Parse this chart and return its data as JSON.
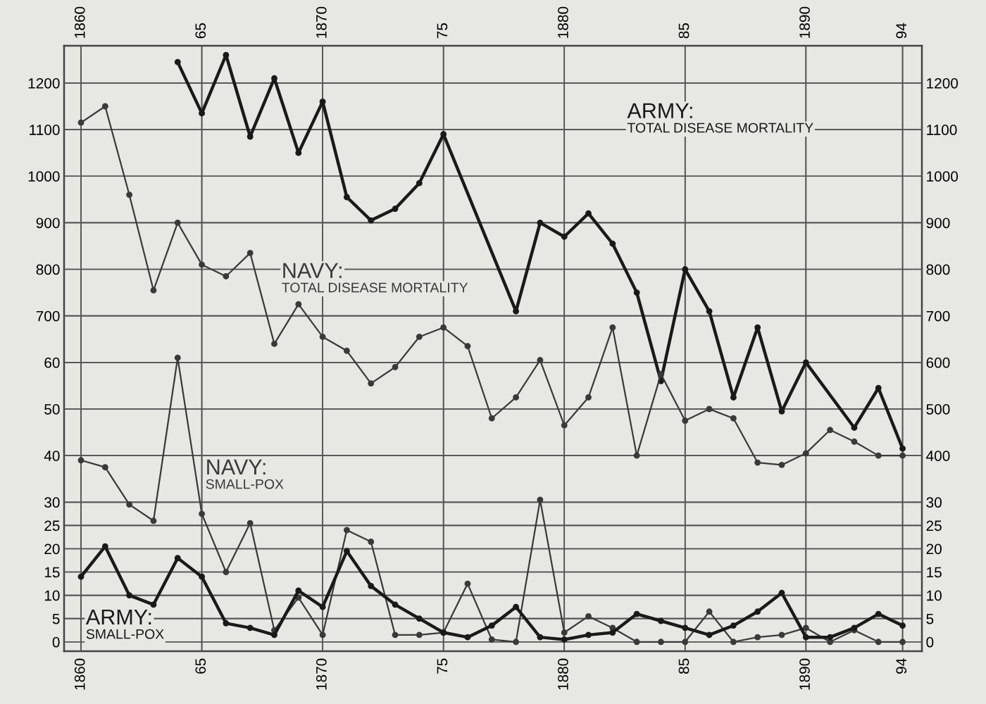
{
  "chart_data": [
    {
      "type": "line",
      "xlim": [
        1859.3,
        1894.8
      ],
      "x2lim": [
        1859.3,
        1894.8
      ],
      "x2ticks": [
        1860,
        {
          "value": 1865,
          "label": "65"
        },
        1870,
        {
          "value": 1875,
          "label": "75"
        },
        1880,
        {
          "value": 1885,
          "label": "85"
        },
        1890,
        {
          "value": 1894,
          "label": "94"
        }
      ],
      "ylim": [
        -20,
        1280
      ],
      "yticks": [
        700,
        800,
        900,
        1000,
        1100,
        1200
      ],
      "y2lim": [
        -20,
        1280
      ],
      "y2ticks": [
        400,
        500,
        600,
        700,
        800,
        900,
        1000,
        1100,
        1200
      ],
      "grid": true,
      "marker": "circle",
      "line_style": "solid",
      "series": [
        {
          "name": "ARMY:\nTOTAL DISEASE MORTALITY",
          "color": "#1a1a1a",
          "axis": "y",
          "x": [
            1864,
            1865,
            1866,
            1867,
            1868,
            1869,
            1870,
            1871,
            1872,
            1873,
            1874,
            1875,
            1878,
            1879,
            1880,
            1881,
            1882,
            1883,
            1884,
            1885,
            1886,
            1887,
            1888,
            1889,
            1890,
            1892,
            1893,
            1894
          ],
          "values": [
            1245,
            1135,
            1260,
            1085,
            1210,
            1050,
            1160,
            955,
            905,
            930,
            985,
            1090,
            710,
            900,
            870,
            920,
            855,
            750,
            560,
            800,
            710,
            525,
            675,
            495,
            600,
            460,
            545,
            415
          ]
        },
        {
          "name": "NAVY:\nTOTAL DISEASE MORTALITY",
          "color": "#3a3a3a",
          "axis": "y",
          "x": [
            1860,
            1861,
            1862,
            1863,
            1864,
            1865,
            1866,
            1867,
            1868,
            1869,
            1870,
            1871,
            1872,
            1873,
            1874,
            1875,
            1876,
            1877,
            1878,
            1879,
            1880,
            1881,
            1882,
            1883,
            1884,
            1885,
            1886,
            1887,
            1888,
            1889,
            1890,
            1891,
            1892,
            1893,
            1894
          ],
          "values": [
            1115,
            1150,
            960,
            755,
            900,
            810,
            785,
            835,
            640,
            725,
            655,
            625,
            555,
            590,
            655,
            675,
            635,
            480,
            525,
            605,
            465,
            525,
            675,
            400,
            575,
            475,
            500,
            480,
            385,
            380,
            405,
            455,
            430,
            400,
            400
          ]
        }
      ]
    },
    {
      "type": "line",
      "xlim": [
        1859.3,
        1894.8
      ],
      "xticks": [
        1860,
        {
          "value": 1865,
          "label": "65"
        },
        1870,
        {
          "value": 1875,
          "label": "75"
        },
        1880,
        {
          "value": 1885,
          "label": "85"
        },
        1890,
        {
          "value": 1894,
          "label": "94"
        }
      ],
      "ylim": [
        -2,
        128
      ],
      "yticks": [
        0,
        5,
        10,
        15,
        20,
        25,
        30,
        40,
        50,
        60
      ],
      "y2lim": [
        -2,
        128
      ],
      "y2ticks": [
        0,
        5,
        10,
        15,
        20,
        25,
        30
      ],
      "grid": true,
      "marker": "circle",
      "line_style": "solid",
      "series": [
        {
          "name": "NAVY:\nSMALL-POX",
          "color": "#3a3a3a",
          "axis": "y",
          "x": [
            1860,
            1861,
            1862,
            1863,
            1864,
            1865,
            1866,
            1867,
            1868,
            1869,
            1870,
            1871,
            1872,
            1873,
            1874,
            1875,
            1876,
            1877,
            1878,
            1879,
            1880,
            1881,
            1882,
            1883,
            1884,
            1885,
            1886,
            1887,
            1888,
            1889,
            1890,
            1891,
            1892,
            1893,
            1894
          ],
          "values": [
            39,
            37.5,
            29.5,
            26,
            61,
            27.5,
            15,
            25.5,
            2.5,
            9.5,
            1.5,
            24,
            21.5,
            1.5,
            1.5,
            2,
            12.5,
            0.5,
            0,
            30.5,
            2,
            5.5,
            3,
            0,
            0,
            0,
            6.5,
            0,
            1,
            1.5,
            3,
            0,
            2.5,
            0,
            0
          ]
        },
        {
          "name": "ARMY:\nSMALL-POX",
          "color": "#1a1a1a",
          "axis": "y",
          "x": [
            1860,
            1861,
            1862,
            1863,
            1864,
            1865,
            1866,
            1867,
            1868,
            1869,
            1870,
            1871,
            1872,
            1873,
            1874,
            1875,
            1876,
            1877,
            1878,
            1879,
            1880,
            1881,
            1882,
            1883,
            1884,
            1885,
            1886,
            1887,
            1888,
            1889,
            1890,
            1891,
            1892,
            1893,
            1894
          ],
          "values": [
            14,
            20.5,
            10,
            8,
            18,
            14,
            4,
            3,
            1.5,
            11,
            7.5,
            19.5,
            12,
            8,
            5,
            2,
            1,
            3.5,
            7.5,
            1,
            0.5,
            1.5,
            2,
            6,
            4.5,
            3,
            1.5,
            3.5,
            6.5,
            10.5,
            1,
            1,
            3,
            6,
            3.5
          ]
        }
      ]
    }
  ]
}
